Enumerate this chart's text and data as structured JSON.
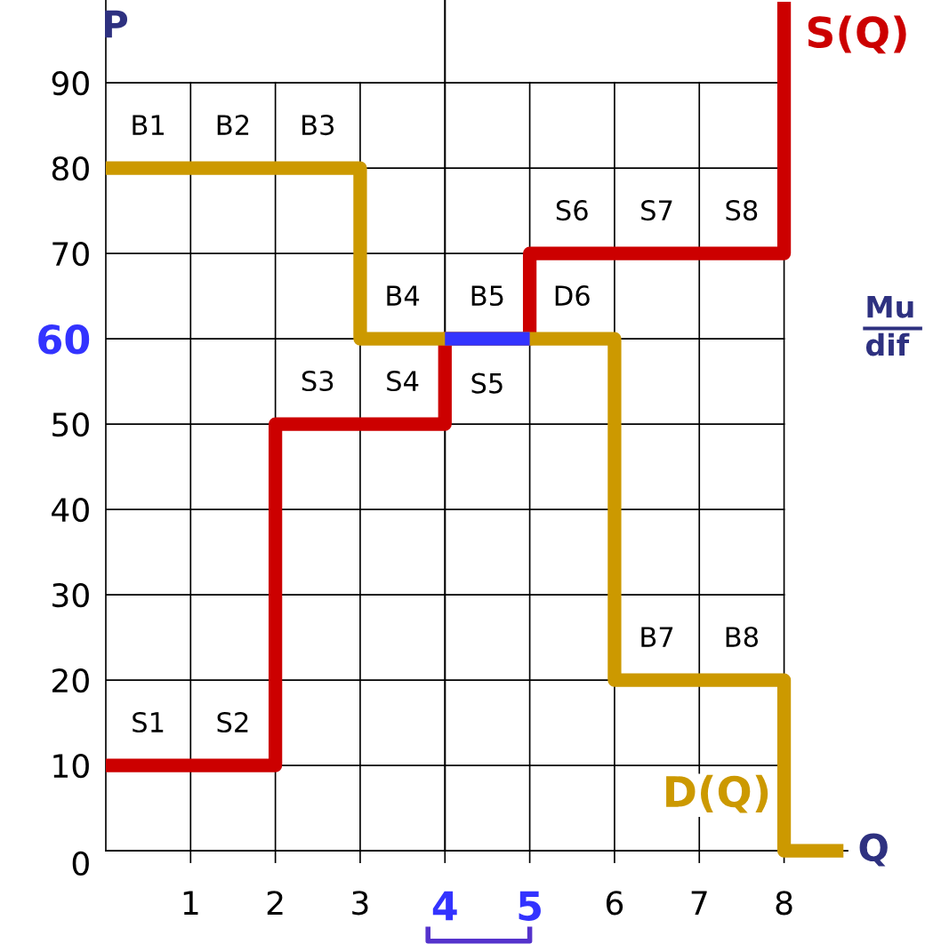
{
  "chart_data": {
    "type": "line",
    "xlabel": "Q",
    "ylabel": "P",
    "xlim": [
      0,
      8.75
    ],
    "ylim": [
      0,
      99.7
    ],
    "xticks": [
      1,
      2,
      3,
      4,
      5,
      6,
      7,
      8
    ],
    "yticks": [
      {
        "value": 0,
        "label": "0"
      },
      10,
      20,
      30,
      40,
      50,
      60,
      70,
      80,
      90
    ],
    "grid": true,
    "legend": false,
    "marker": "none",
    "line_style": "solid",
    "series": [
      {
        "name": "S(Q)",
        "color": "#cc0000",
        "x": [
          0,
          2,
          2,
          4,
          4,
          5,
          5,
          8,
          8
        ],
        "values": [
          10,
          10,
          50,
          50,
          60,
          60,
          70,
          70,
          99.5
        ]
      },
      {
        "name": "D(Q)",
        "color": "#cc9900",
        "x": [
          0,
          3,
          3,
          6,
          6,
          8,
          8,
          8.7
        ],
        "values": [
          80,
          80,
          60,
          60,
          20,
          20,
          0,
          0
        ]
      },
      {
        "color": "#3333ff",
        "x": [
          4,
          5
        ],
        "values": [
          60,
          60
        ]
      }
    ],
    "ref_lines": [
      {
        "axis": "x",
        "value": 4,
        "color": "#000000"
      }
    ],
    "annotations": [
      {
        "text": "B1",
        "x": 0.5,
        "y": 80
      },
      {
        "text": "B2",
        "x": 1.5,
        "y": 80
      },
      {
        "text": "B3",
        "x": 2.5,
        "y": 80
      },
      {
        "text": "S6",
        "x": 5.5,
        "y": 70
      },
      {
        "text": "S7",
        "x": 6.5,
        "y": 70
      },
      {
        "text": "S8",
        "x": 7.5,
        "y": 70
      },
      {
        "text": "B4",
        "x": 3.5,
        "y": 60
      },
      {
        "text": "B5",
        "x": 4.5,
        "y": 60
      },
      {
        "text": "D6",
        "x": 5.5,
        "y": 60
      },
      {
        "text": "S3",
        "x": 2.5,
        "y": 50
      },
      {
        "text": "S4",
        "x": 3.5,
        "y": 50
      },
      {
        "text": "S5",
        "x": 4.5,
        "y": 60
      },
      {
        "text": "B7",
        "x": 6.5,
        "y": 20
      },
      {
        "text": "B8",
        "x": 7.5,
        "y": 20
      },
      {
        "text": "S1",
        "x": 0.5,
        "y": 10
      },
      {
        "text": "S2",
        "x": 1.5,
        "y": 10
      },
      "Mu",
      "dif"
    ]
  }
}
